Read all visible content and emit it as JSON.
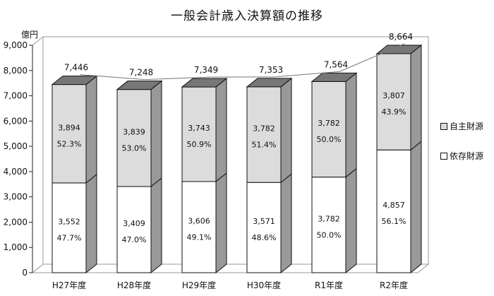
{
  "chart_data": {
    "type": "bar",
    "title": "一般会計歳入決算額の推移",
    "ylabel": "億円",
    "ylim": [
      0,
      9000
    ],
    "yticks": [
      "0",
      "1,000",
      "2,000",
      "3,000",
      "4,000",
      "5,000",
      "6,000",
      "7,000",
      "8,000",
      "9,000"
    ],
    "categories": [
      "H27年度",
      "H28年度",
      "H29年度",
      "H30年度",
      "R1年度",
      "R2年度"
    ],
    "totals": [
      7446,
      7248,
      7349,
      7353,
      7564,
      8664
    ],
    "total_labels": [
      "7,446",
      "7,248",
      "7,349",
      "7,353",
      "7,564",
      "8,664"
    ],
    "series": [
      {
        "name": "依存財源",
        "color": "#ffffff",
        "values": [
          3552,
          3409,
          3606,
          3571,
          3782,
          4857
        ],
        "value_labels": [
          "3,552",
          "3,409",
          "3,606",
          "3,571",
          "3,782",
          "4,857"
        ],
        "percent_labels": [
          "47.7%",
          "47.0%",
          "49.1%",
          "48.6%",
          "50.0%",
          "56.1%"
        ]
      },
      {
        "name": "自主財源",
        "color": "#dcdcdc",
        "values": [
          3894,
          3839,
          3743,
          3782,
          3782,
          3807
        ],
        "value_labels": [
          "3,894",
          "3,839",
          "3,743",
          "3,782",
          "3,782",
          "3,807"
        ],
        "percent_labels": [
          "52.3%",
          "53.0%",
          "50.9%",
          "51.4%",
          "50.0%",
          "43.9%"
        ]
      }
    ],
    "legend_position": "right",
    "grid": false,
    "style": "3d-stacked"
  }
}
